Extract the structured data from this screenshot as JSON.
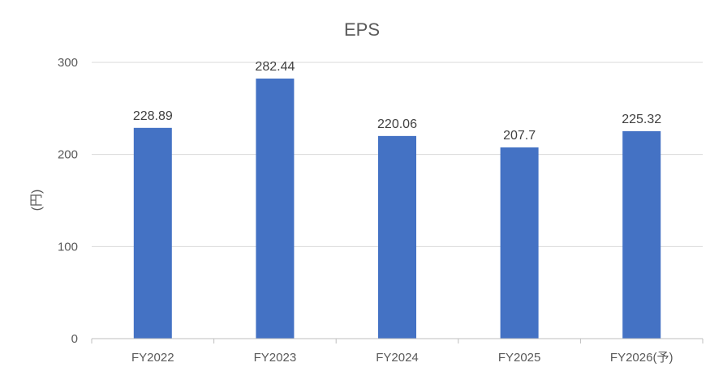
{
  "chart_data": {
    "type": "bar",
    "title": "EPS",
    "ylabel": "(円)",
    "xlabel": "",
    "categories": [
      "FY2022",
      "FY2023",
      "FY2024",
      "FY2025",
      "FY2026(予)"
    ],
    "values": [
      228.89,
      282.44,
      220.06,
      207.7,
      225.32
    ],
    "value_labels": [
      "228.89",
      "282.44",
      "220.06",
      "207.7",
      "225.32"
    ],
    "ylim": [
      0,
      300
    ],
    "yticks": [
      0,
      100,
      200,
      300
    ],
    "ytick_labels": [
      "0",
      "100",
      "200",
      "300"
    ],
    "grid": true,
    "legend": "none",
    "colors": {
      "bar": "#4472C4",
      "grid": "#D9D9D9",
      "axis": "#BFBFBF",
      "text": "#595959",
      "data_label": "#404040",
      "title": "#595959"
    }
  }
}
